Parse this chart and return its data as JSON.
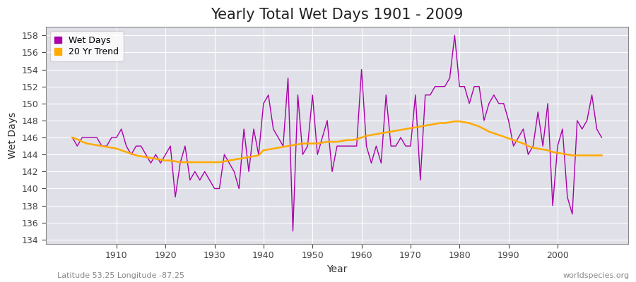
{
  "title": "Yearly Total Wet Days 1901 - 2009",
  "xlabel": "Year",
  "ylabel": "Wet Days",
  "lat_lon_label": "Latitude 53.25 Longitude -87.25",
  "watermark": "worldspecies.org",
  "years": [
    1901,
    1902,
    1903,
    1904,
    1905,
    1906,
    1907,
    1908,
    1909,
    1910,
    1911,
    1912,
    1913,
    1914,
    1915,
    1916,
    1917,
    1918,
    1919,
    1920,
    1921,
    1922,
    1923,
    1924,
    1925,
    1926,
    1927,
    1928,
    1929,
    1930,
    1931,
    1932,
    1933,
    1934,
    1935,
    1936,
    1937,
    1938,
    1939,
    1940,
    1941,
    1942,
    1943,
    1944,
    1945,
    1946,
    1947,
    1948,
    1949,
    1950,
    1951,
    1952,
    1953,
    1954,
    1955,
    1956,
    1957,
    1958,
    1959,
    1960,
    1961,
    1962,
    1963,
    1964,
    1965,
    1966,
    1967,
    1968,
    1969,
    1970,
    1971,
    1972,
    1973,
    1974,
    1975,
    1976,
    1977,
    1978,
    1979,
    1980,
    1981,
    1982,
    1983,
    1984,
    1985,
    1986,
    1987,
    1988,
    1989,
    1990,
    1991,
    1992,
    1993,
    1994,
    1995,
    1996,
    1997,
    1998,
    1999,
    2000,
    2001,
    2002,
    2003,
    2004,
    2005,
    2006,
    2007,
    2008,
    2009
  ],
  "wet_days": [
    146,
    145,
    146,
    146,
    146,
    146,
    145,
    145,
    146,
    146,
    147,
    145,
    144,
    145,
    145,
    144,
    143,
    144,
    143,
    144,
    145,
    139,
    143,
    145,
    141,
    142,
    141,
    142,
    141,
    140,
    140,
    144,
    143,
    142,
    140,
    147,
    142,
    147,
    144,
    150,
    151,
    147,
    146,
    145,
    153,
    135,
    151,
    144,
    145,
    151,
    144,
    146,
    148,
    142,
    145,
    145,
    145,
    145,
    145,
    154,
    145,
    143,
    145,
    143,
    151,
    145,
    145,
    146,
    145,
    145,
    151,
    141,
    151,
    151,
    152,
    152,
    152,
    153,
    158,
    152,
    152,
    150,
    152,
    152,
    148,
    150,
    151,
    150,
    150,
    148,
    145,
    146,
    147,
    144,
    145,
    149,
    145,
    150,
    138,
    145,
    147,
    139,
    137,
    148,
    147,
    148,
    151,
    147,
    146
  ],
  "trend_vals": [
    146.0,
    145.8,
    145.5,
    145.3,
    145.2,
    145.1,
    145.0,
    144.9,
    144.8,
    144.7,
    144.5,
    144.3,
    144.1,
    143.9,
    143.8,
    143.7,
    143.6,
    143.5,
    143.4,
    143.3,
    143.3,
    143.2,
    143.1,
    143.1,
    143.1,
    143.1,
    143.1,
    143.1,
    143.1,
    143.1,
    143.1,
    143.2,
    143.3,
    143.4,
    143.5,
    143.6,
    143.7,
    143.8,
    143.9,
    144.5,
    144.6,
    144.7,
    144.8,
    144.9,
    145.0,
    145.1,
    145.2,
    145.3,
    145.3,
    145.3,
    145.3,
    145.4,
    145.5,
    145.5,
    145.5,
    145.6,
    145.7,
    145.7,
    145.8,
    146.0,
    146.2,
    146.3,
    146.4,
    146.5,
    146.6,
    146.7,
    146.8,
    146.9,
    147.0,
    147.1,
    147.2,
    147.3,
    147.4,
    147.5,
    147.6,
    147.7,
    147.7,
    147.8,
    147.9,
    147.9,
    147.8,
    147.7,
    147.5,
    147.3,
    147.0,
    146.7,
    146.5,
    146.3,
    146.1,
    145.9,
    145.7,
    145.5,
    145.3,
    145.0,
    144.8,
    144.7,
    144.6,
    144.5,
    144.3,
    144.2,
    144.1,
    144.0,
    143.9,
    143.9,
    143.9,
    143.9,
    143.9,
    143.9,
    143.9
  ],
  "wet_days_color": "#aa00aa",
  "trend_color": "#ffaa00",
  "fig_bg_color": "#ffffff",
  "plot_bg_color": "#e0e0e8",
  "ylim": [
    133.5,
    159
  ],
  "yticks": [
    134,
    136,
    138,
    140,
    142,
    144,
    146,
    148,
    150,
    152,
    154,
    156,
    158
  ],
  "xticks": [
    1910,
    1920,
    1930,
    1940,
    1950,
    1960,
    1970,
    1980,
    1990,
    2000
  ],
  "grid_color": "#ffffff",
  "title_fontsize": 15,
  "label_fontsize": 10,
  "tick_fontsize": 9,
  "annotation_color": "#888888",
  "spine_color": "#888888"
}
